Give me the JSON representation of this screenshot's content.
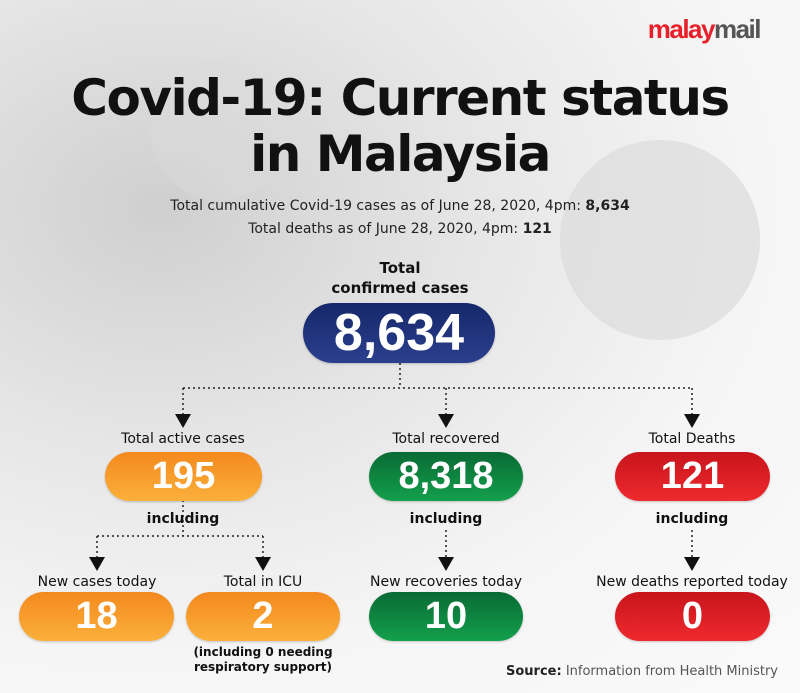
{
  "logo": {
    "part1": "malay",
    "part2": "mail"
  },
  "title": {
    "line1": "Covid-19: Current status",
    "line2": "in Malaysia"
  },
  "subtitle": {
    "line1_prefix": "Total cumulative Covid-19 cases as of June 28, 2020, 4pm: ",
    "line1_value": "8,634",
    "line2_prefix": "Total deaths as of June 28, 2020, 4pm: ",
    "line2_value": "121"
  },
  "total": {
    "label_line1": "Total",
    "label_line2": "confirmed cases",
    "value": "8,634"
  },
  "active": {
    "label": "Total active cases",
    "value": "195",
    "including": "including",
    "new_cases": {
      "label": "New cases today",
      "value": "18"
    },
    "icu": {
      "label": "Total in ICU",
      "value": "2",
      "note_line1": "(including 0 needing",
      "note_line2": "respiratory support)"
    }
  },
  "recovered": {
    "label": "Total recovered",
    "value": "8,318",
    "including": "including",
    "new": {
      "label": "New recoveries today",
      "value": "10"
    }
  },
  "deaths": {
    "label": "Total Deaths",
    "value": "121",
    "including": "including",
    "new": {
      "label": "New deaths reported today",
      "value": "0"
    }
  },
  "source": {
    "prefix": "Source:",
    "text": " Information from Health Ministry"
  },
  "colors": {
    "navy": "#1f3278",
    "orange": "#f7991f",
    "green": "#0e8a40",
    "red": "#e0212a",
    "logo_red": "#e8202a"
  }
}
